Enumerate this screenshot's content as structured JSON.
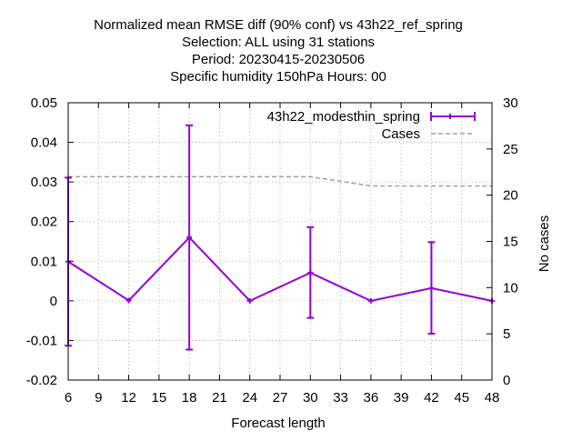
{
  "chart_data": {
    "type": "line",
    "title_lines": [
      "Normalized mean RMSE diff (90% conf) vs 43h22_ref_spring",
      "Selection: ALL using    31 stations",
      "Period: 20230415-20230506",
      "Specific humidity 150hPa   Hours:  00"
    ],
    "xlabel": "Forecast length",
    "ylabel_right": "No cases",
    "x_ticks": [
      6,
      9,
      12,
      15,
      18,
      21,
      24,
      27,
      30,
      33,
      36,
      39,
      42,
      45,
      48
    ],
    "y_ticks": [
      -0.02,
      -0.01,
      0,
      0.01,
      0.02,
      0.03,
      0.04,
      0.05
    ],
    "y_tick_labels": [
      "-0.02",
      "-0.01",
      "0",
      "0.01",
      "0.02",
      "0.03",
      "0.04",
      "0.05"
    ],
    "y2_ticks": [
      0,
      5,
      10,
      15,
      20,
      25,
      30
    ],
    "xlim": [
      6,
      48
    ],
    "ylim": [
      -0.02,
      0.05
    ],
    "y2lim": [
      0,
      30
    ],
    "grid": true,
    "legend_position": "top-right",
    "series": [
      {
        "name": "43h22_modesthin_spring",
        "axis": "left",
        "color": "#9400d3",
        "x": [
          6,
          12,
          18,
          24,
          30,
          36,
          42,
          48
        ],
        "y": [
          0.0099,
          0.0001,
          0.016,
          0.0,
          0.0071,
          0.0,
          0.0032,
          0.0
        ],
        "err_low": [
          -0.0113,
          0.0001,
          -0.0123,
          0.0,
          -0.0043,
          0.0,
          -0.0083,
          0.0
        ],
        "err_high": [
          0.0311,
          0.0001,
          0.0443,
          0.0,
          0.0186,
          0.0,
          0.0148,
          0.0
        ]
      },
      {
        "name": "Cases",
        "axis": "right",
        "color": "#a0a0a0",
        "x": [
          6,
          12,
          18,
          24,
          30,
          36,
          42,
          48
        ],
        "y": [
          22,
          22,
          22,
          22,
          22,
          21,
          21,
          21
        ]
      }
    ]
  }
}
